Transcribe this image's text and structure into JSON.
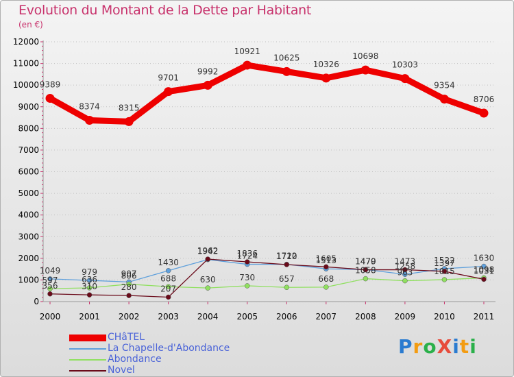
{
  "title": "Evolution du Montant de la Dette par Habitant",
  "subtitle": "(en €)",
  "logo": {
    "text": "ProXiti",
    "colors": [
      "#2a7bd0",
      "#f39c12",
      "#2ab04a",
      "#e74c3c",
      "#2a7bd0",
      "#f39c12",
      "#2ab04a"
    ]
  },
  "chart_data": {
    "type": "line",
    "title": "Evolution du Montant de la Dette par Habitant",
    "ylabel": "(en €)",
    "x": [
      "2000",
      "2001",
      "2002",
      "2003",
      "2004",
      "2005",
      "2006",
      "2007",
      "2008",
      "2009",
      "2010",
      "2011"
    ],
    "ylim": [
      0,
      12000
    ],
    "yticks": [
      "0",
      "1000",
      "2000",
      "3000",
      "4000",
      "5000",
      "6000",
      "7000",
      "8000",
      "9000",
      "10000",
      "11000",
      "12000"
    ],
    "series": [
      {
        "name": "CHâTEL",
        "color": "#ee0000",
        "values": [
          9389,
          8374,
          8315,
          9701,
          9992,
          10921,
          10625,
          10326,
          10698,
          10303,
          9354,
          8706
        ],
        "labels": [
          "9389",
          "8374",
          "8315",
          "9701",
          "9992",
          "10921",
          "10625",
          "10326",
          "10698",
          "10303",
          "9354",
          "8706"
        ]
      },
      {
        "name": "La Chapelle-d'Abondance",
        "color": "#5fa0dc",
        "values": [
          1049,
          979,
          907,
          1430,
          1942,
          1724,
          1722,
          1513,
          1479,
          1258,
          1522,
          1630
        ],
        "labels": [
          "1049",
          "979",
          "907",
          "1430",
          "1942",
          "1724",
          "1722",
          "1513",
          "1479",
          "1258",
          "1522",
          "1630"
        ]
      },
      {
        "name": "Abondance",
        "color": "#90e060",
        "values": [
          597,
          636,
          806,
          688,
          630,
          730,
          657,
          668,
          1058,
          963,
          1015,
          1098
        ],
        "labels": [
          "597",
          "636",
          "806",
          "688",
          "630",
          "730",
          "657",
          "668",
          "1058",
          "963",
          "1015",
          "1098"
        ]
      },
      {
        "name": "Novel",
        "color": "#6a0a1a",
        "values": [
          356,
          310,
          280,
          207,
          1962,
          1836,
          1710,
          1605,
          1470,
          1473,
          1397,
          1031
        ],
        "labels": [
          "356",
          "310",
          "280",
          "207",
          "1962",
          "1836",
          "1710",
          "1605",
          "1470",
          "1473",
          "1397",
          "1031"
        ]
      }
    ]
  }
}
